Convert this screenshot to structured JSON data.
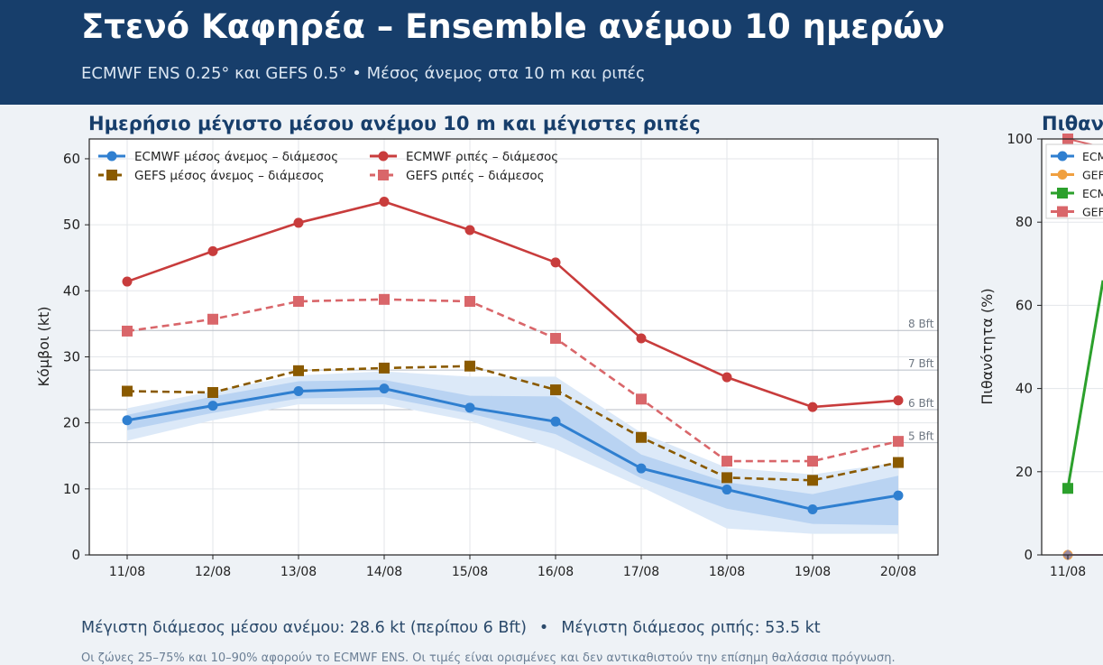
{
  "header": {
    "title": "Στενό Καφηρέα – Ensemble ανέμου 10 ημερών",
    "subtitle": "ECMWF ENS 0.25° και GEFS 0.5° • Μέσος άνεμος στα 10 m και ριπές"
  },
  "footer": {
    "summary_wind": "Μέγιστη διάμεσος μέσου ανέμου: 28.6 kt (περίπου 6 Bft)",
    "summary_sep": "•",
    "summary_gust": "Μέγιστη διάμεσος ριπής: 53.5 kt",
    "note": "Οι ζώνες 25–75% και 10–90% αφορούν το ECMWF ENS. Οι τιμές είναι ορισμένες και δεν αντικαθιστούν την επίσημη θαλάσσια πρόγνωση."
  },
  "chart_data": [
    {
      "type": "line",
      "title": "Ημερήσιο μέγιστο μέσου ανέμου 10 m και μέγιστες ριπές",
      "xlabel": "",
      "ylabel": "Κόμβοι (kt)",
      "ylim": [
        0,
        63
      ],
      "yticks": [
        0,
        10,
        20,
        30,
        40,
        50,
        60
      ],
      "grid": true,
      "legend_position": "top-left",
      "categories": [
        "11/08",
        "12/08",
        "13/08",
        "14/08",
        "15/08",
        "16/08",
        "17/08",
        "18/08",
        "19/08",
        "20/08"
      ],
      "series": [
        {
          "name": "ECMWF μέσος άνεμος – διάμεσος",
          "color": "#2f7fd0",
          "style": "solid",
          "marker": "circle",
          "values": [
            20.4,
            22.6,
            24.8,
            25.2,
            22.3,
            20.2,
            13.1,
            9.9,
            6.9,
            9.0
          ]
        },
        {
          "name": "ECMWF ριπές – διάμεσος",
          "color": "#c83c3c",
          "style": "solid",
          "marker": "circle",
          "values": [
            41.4,
            46.0,
            50.3,
            53.5,
            49.2,
            44.3,
            32.8,
            26.9,
            22.4,
            23.4
          ]
        },
        {
          "name": "GEFS μέσος άνεμος – διάμεσος",
          "color": "#8a5a00",
          "style": "dashed",
          "marker": "square",
          "values": [
            24.8,
            24.6,
            27.9,
            28.3,
            28.6,
            25.0,
            17.8,
            11.7,
            11.3,
            14.0
          ]
        },
        {
          "name": "GEFS ριπές – διάμεσος",
          "color": "#d9666a",
          "style": "dashed",
          "marker": "square",
          "values": [
            33.9,
            35.7,
            38.4,
            38.7,
            38.4,
            32.8,
            23.6,
            14.2,
            14.2,
            17.2
          ]
        }
      ],
      "bands": [
        {
          "range": "10–90%",
          "color": "#dce9f8",
          "low": [
            17.3,
            20.4,
            22.8,
            22.8,
            20.3,
            16.0,
            10.3,
            4.0,
            3.2,
            3.2
          ],
          "high": [
            22.2,
            24.8,
            27.2,
            27.8,
            27.0,
            27.0,
            18.5,
            13.2,
            12.2,
            14.0
          ]
        },
        {
          "range": "25–75%",
          "color": "#b9d3f2",
          "low": [
            18.9,
            21.5,
            23.7,
            23.9,
            21.4,
            18.3,
            11.6,
            7.0,
            4.7,
            4.5
          ],
          "high": [
            21.2,
            24.0,
            26.3,
            26.5,
            24.1,
            24.0,
            15.2,
            11.0,
            9.2,
            12.0
          ]
        }
      ],
      "reference_lines": [
        {
          "label": "5 Bft",
          "value": 17
        },
        {
          "label": "6 Bft",
          "value": 22
        },
        {
          "label": "7 Bft",
          "value": 28
        },
        {
          "label": "8 Bft",
          "value": 34
        }
      ]
    },
    {
      "type": "line",
      "title": "Πιθαν",
      "xlabel": "",
      "ylabel": "Πιθανότητα (%)",
      "ylim": [
        0,
        100
      ],
      "yticks": [
        0,
        20,
        40,
        60,
        80,
        100
      ],
      "grid": true,
      "legend_position": "top-left",
      "categories": [
        "11/08"
      ],
      "legend_labels": [
        "ECM",
        "GEF",
        "ECM",
        "GEF"
      ],
      "series": [
        {
          "name": "ECM",
          "color": "#2f7fd0",
          "marker": "circle",
          "values": [
            92
          ]
        },
        {
          "name": "GEF",
          "color": "#f0a040",
          "marker": "circle",
          "values": [
            0
          ]
        },
        {
          "name": "ECM",
          "color": "#2ca02c",
          "marker": "square",
          "values": [
            16
          ]
        },
        {
          "name": "GEF",
          "color": "#d9666a",
          "marker": "square",
          "values": [
            100
          ]
        },
        {
          "name": "",
          "color": "#9a8aa0",
          "marker": "diamond",
          "values": [
            0
          ]
        }
      ]
    }
  ]
}
